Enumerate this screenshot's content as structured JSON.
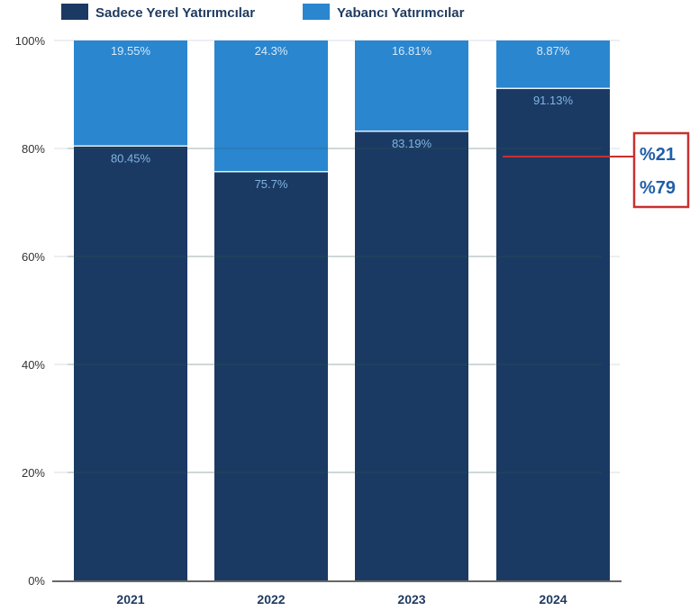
{
  "chart_data": {
    "type": "bar",
    "stacked": true,
    "categories": [
      "2021",
      "2022",
      "2023",
      "2024"
    ],
    "series": [
      {
        "name": "Sadece Yerel Yatırımcılar",
        "values": [
          80.45,
          75.7,
          83.19,
          91.13
        ],
        "labels": [
          "80.45%",
          "75.7%",
          "83.19%",
          "91.13%"
        ],
        "color": "#1b3a63"
      },
      {
        "name": "Yabancı Yatırımcılar",
        "values": [
          19.55,
          24.3,
          16.81,
          8.87
        ],
        "labels": [
          "19.55%",
          "24.3%",
          "16.81%",
          "8.87%"
        ],
        "color": "#2a86cf"
      }
    ],
    "yticks": [
      0,
      20,
      40,
      60,
      80,
      100
    ],
    "ytick_labels": [
      "0%",
      "20%",
      "40%",
      "60%",
      "80%",
      "100%"
    ],
    "ylim": [
      0,
      100
    ],
    "grid": true,
    "legend": "top-left",
    "annotation": {
      "lines": [
        "%21",
        "%79"
      ],
      "border_color": "#c8302f",
      "text_color": "#1f5fa8",
      "pointer_value": 78.5
    }
  }
}
